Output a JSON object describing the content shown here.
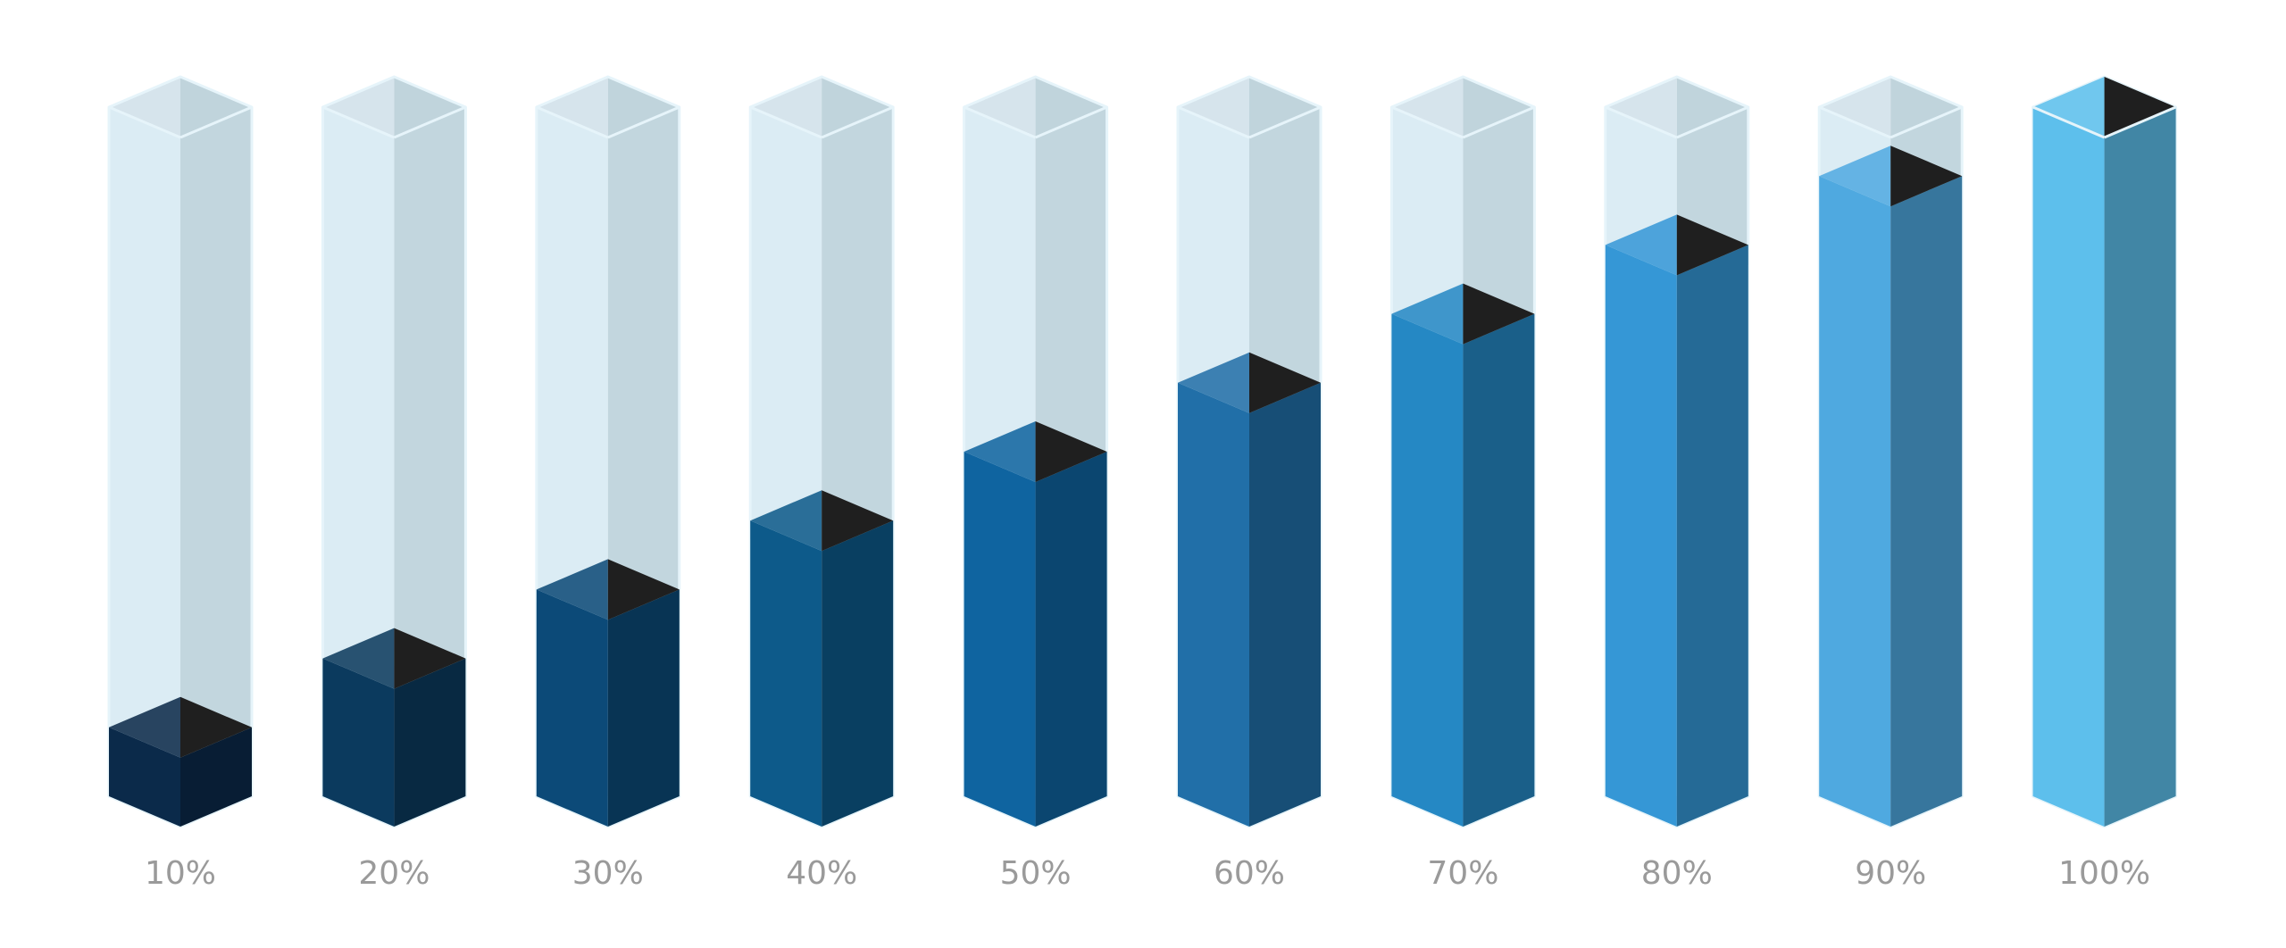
{
  "chart_data": {
    "type": "bar",
    "values": [
      10,
      20,
      30,
      40,
      50,
      60,
      70,
      80,
      90,
      100
    ],
    "value_labels": [
      "10%",
      "20%",
      "30%",
      "40%",
      "50%",
      "60%",
      "70%",
      "80%",
      "90%",
      "100%"
    ],
    "colors": [
      "#0b2a4a",
      "#0b3a5e",
      "#0c4a78",
      "#0d5a8a",
      "#0f64a0",
      "#216fa8",
      "#2588c4",
      "#3597d6",
      "#4fa9e0",
      "#5dbfec"
    ],
    "ylim": [
      0,
      100
    ]
  }
}
